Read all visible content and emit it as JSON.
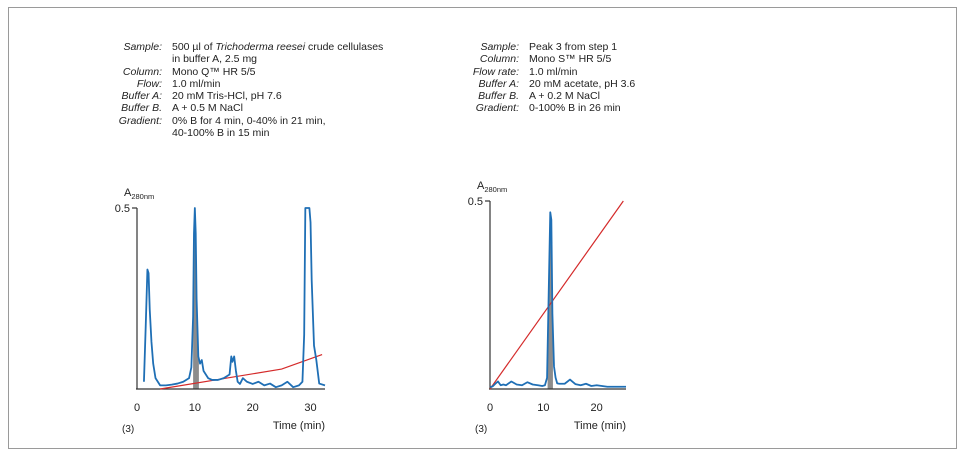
{
  "methods": [
    {
      "rows": [
        {
          "label": "Sample:",
          "pre": "500 µl of ",
          "italic": "Trichoderma reesei",
          "post": " crude cellulases"
        },
        {
          "label": "",
          "text": "in buffer A, 2.5 mg"
        },
        {
          "label": "Column:",
          "text": "Mono Q™ HR 5/5"
        },
        {
          "label": "Flow:",
          "text": "1.0 ml/min"
        },
        {
          "label": "Buffer A:",
          "text": "20 mM Tris-HCl, pH 7.6"
        },
        {
          "label": "Buffer B.",
          "text": "A + 0.5 M NaCl"
        },
        {
          "label": "Gradient:",
          "text": "0% B for 4 min, 0-40% in 21 min,"
        },
        {
          "label": "",
          "text": "40-100% B in 15 min"
        }
      ]
    },
    {
      "rows": [
        {
          "label": "Sample:",
          "text": "Peak 3 from step 1"
        },
        {
          "label": "Column:",
          "text": "Mono S™ HR 5/5"
        },
        {
          "label": "Flow rate:",
          "text": "1.0 ml/min"
        },
        {
          "label": "Buffer A:",
          "text": "20 mM acetate, pH 3.6"
        },
        {
          "label": "Buffer B.",
          "text": "A + 0.2 M NaCl"
        },
        {
          "label": "Gradient:",
          "text": "0-100% B in 26 min"
        }
      ]
    }
  ],
  "colors": {
    "trace": "#1f6fb5",
    "gradient": "#d42a2a",
    "fraction": "#8c8c8c",
    "axis": "#333333"
  },
  "chart_data": [
    {
      "type": "line",
      "ylabel_main": "A",
      "ylabel_sub": "280nm",
      "y_tick_label": "0.5",
      "xlabel": "Time (min)",
      "annotation": "(3)",
      "xlim": [
        0,
        32.5
      ],
      "ylim": [
        0,
        0.5
      ],
      "x_ticks": [
        0,
        10,
        20,
        30
      ],
      "y_ticks": [
        0.5
      ],
      "shaded_fraction_x": [
        9.7,
        10.7
      ],
      "series": [
        {
          "role": "absorbance",
          "x": [
            1.2,
            1.5,
            1.8,
            2.0,
            2.2,
            2.5,
            2.8,
            3.2,
            3.6,
            4.0,
            5.0,
            6.0,
            7.0,
            8.0,
            9.0,
            9.4,
            9.7,
            9.85,
            10.0,
            10.15,
            10.3,
            10.6,
            10.9,
            11.2,
            11.5,
            11.9,
            12.3,
            13.0,
            14.0,
            15.0,
            16.0,
            16.3,
            16.5,
            16.8,
            17.1,
            17.4,
            17.8,
            18.3,
            19.0,
            20.0,
            21.0,
            22.0,
            23.0,
            24.0,
            25.0,
            26.0,
            27.0,
            28.0,
            28.6,
            28.9,
            29.1,
            29.8,
            30.0,
            30.2,
            30.6,
            31.0,
            31.5,
            32.5
          ],
          "y": [
            0.02,
            0.17,
            0.33,
            0.32,
            0.22,
            0.13,
            0.07,
            0.03,
            0.02,
            0.01,
            0.01,
            0.012,
            0.015,
            0.02,
            0.03,
            0.06,
            0.2,
            0.43,
            0.5,
            0.43,
            0.25,
            0.09,
            0.07,
            0.08,
            0.05,
            0.04,
            0.03,
            0.025,
            0.025,
            0.03,
            0.04,
            0.09,
            0.075,
            0.09,
            0.05,
            0.02,
            0.014,
            0.03,
            0.02,
            0.014,
            0.02,
            0.01,
            0.015,
            0.005,
            0.01,
            0.02,
            0.005,
            0.01,
            0.02,
            0.15,
            0.5,
            0.5,
            0.46,
            0.3,
            0.12,
            0.08,
            0.015,
            0.01
          ]
        },
        {
          "role": "gradient",
          "x": [
            4,
            25,
            32
          ],
          "y": [
            0,
            0.055,
            0.095
          ]
        }
      ]
    },
    {
      "type": "line",
      "ylabel_main": "A",
      "ylabel_sub": "280nm",
      "y_tick_label": "0.5",
      "xlabel": "Time (min)",
      "annotation": "(3)",
      "xlim": [
        0,
        25.5
      ],
      "ylim": [
        0,
        0.5
      ],
      "x_ticks": [
        0,
        10,
        20
      ],
      "y_ticks": [
        0.5
      ],
      "shaded_fraction_x": [
        10.8,
        11.8
      ],
      "series": [
        {
          "role": "absorbance",
          "x": [
            0,
            0.5,
            1.0,
            1.5,
            2.0,
            2.5,
            3.0,
            4.0,
            5.0,
            6.0,
            7.0,
            8.0,
            9.0,
            9.8,
            10.3,
            10.7,
            11.0,
            11.3,
            11.5,
            11.7,
            12.0,
            12.3,
            12.6,
            13.0,
            14.0,
            15.0,
            16.0,
            17.0,
            18.0,
            19.0,
            20.0,
            22.0,
            24.0,
            25.5
          ],
          "y": [
            0.005,
            0.007,
            0.014,
            0.02,
            0.01,
            0.012,
            0.01,
            0.02,
            0.012,
            0.01,
            0.018,
            0.012,
            0.01,
            0.008,
            0.01,
            0.03,
            0.25,
            0.47,
            0.45,
            0.2,
            0.06,
            0.03,
            0.015,
            0.014,
            0.014,
            0.025,
            0.013,
            0.01,
            0.014,
            0.008,
            0.01,
            0.006,
            0.006,
            0.006
          ]
        },
        {
          "role": "gradient",
          "x": [
            0,
            25
          ],
          "y": [
            0,
            0.5
          ]
        }
      ]
    }
  ]
}
